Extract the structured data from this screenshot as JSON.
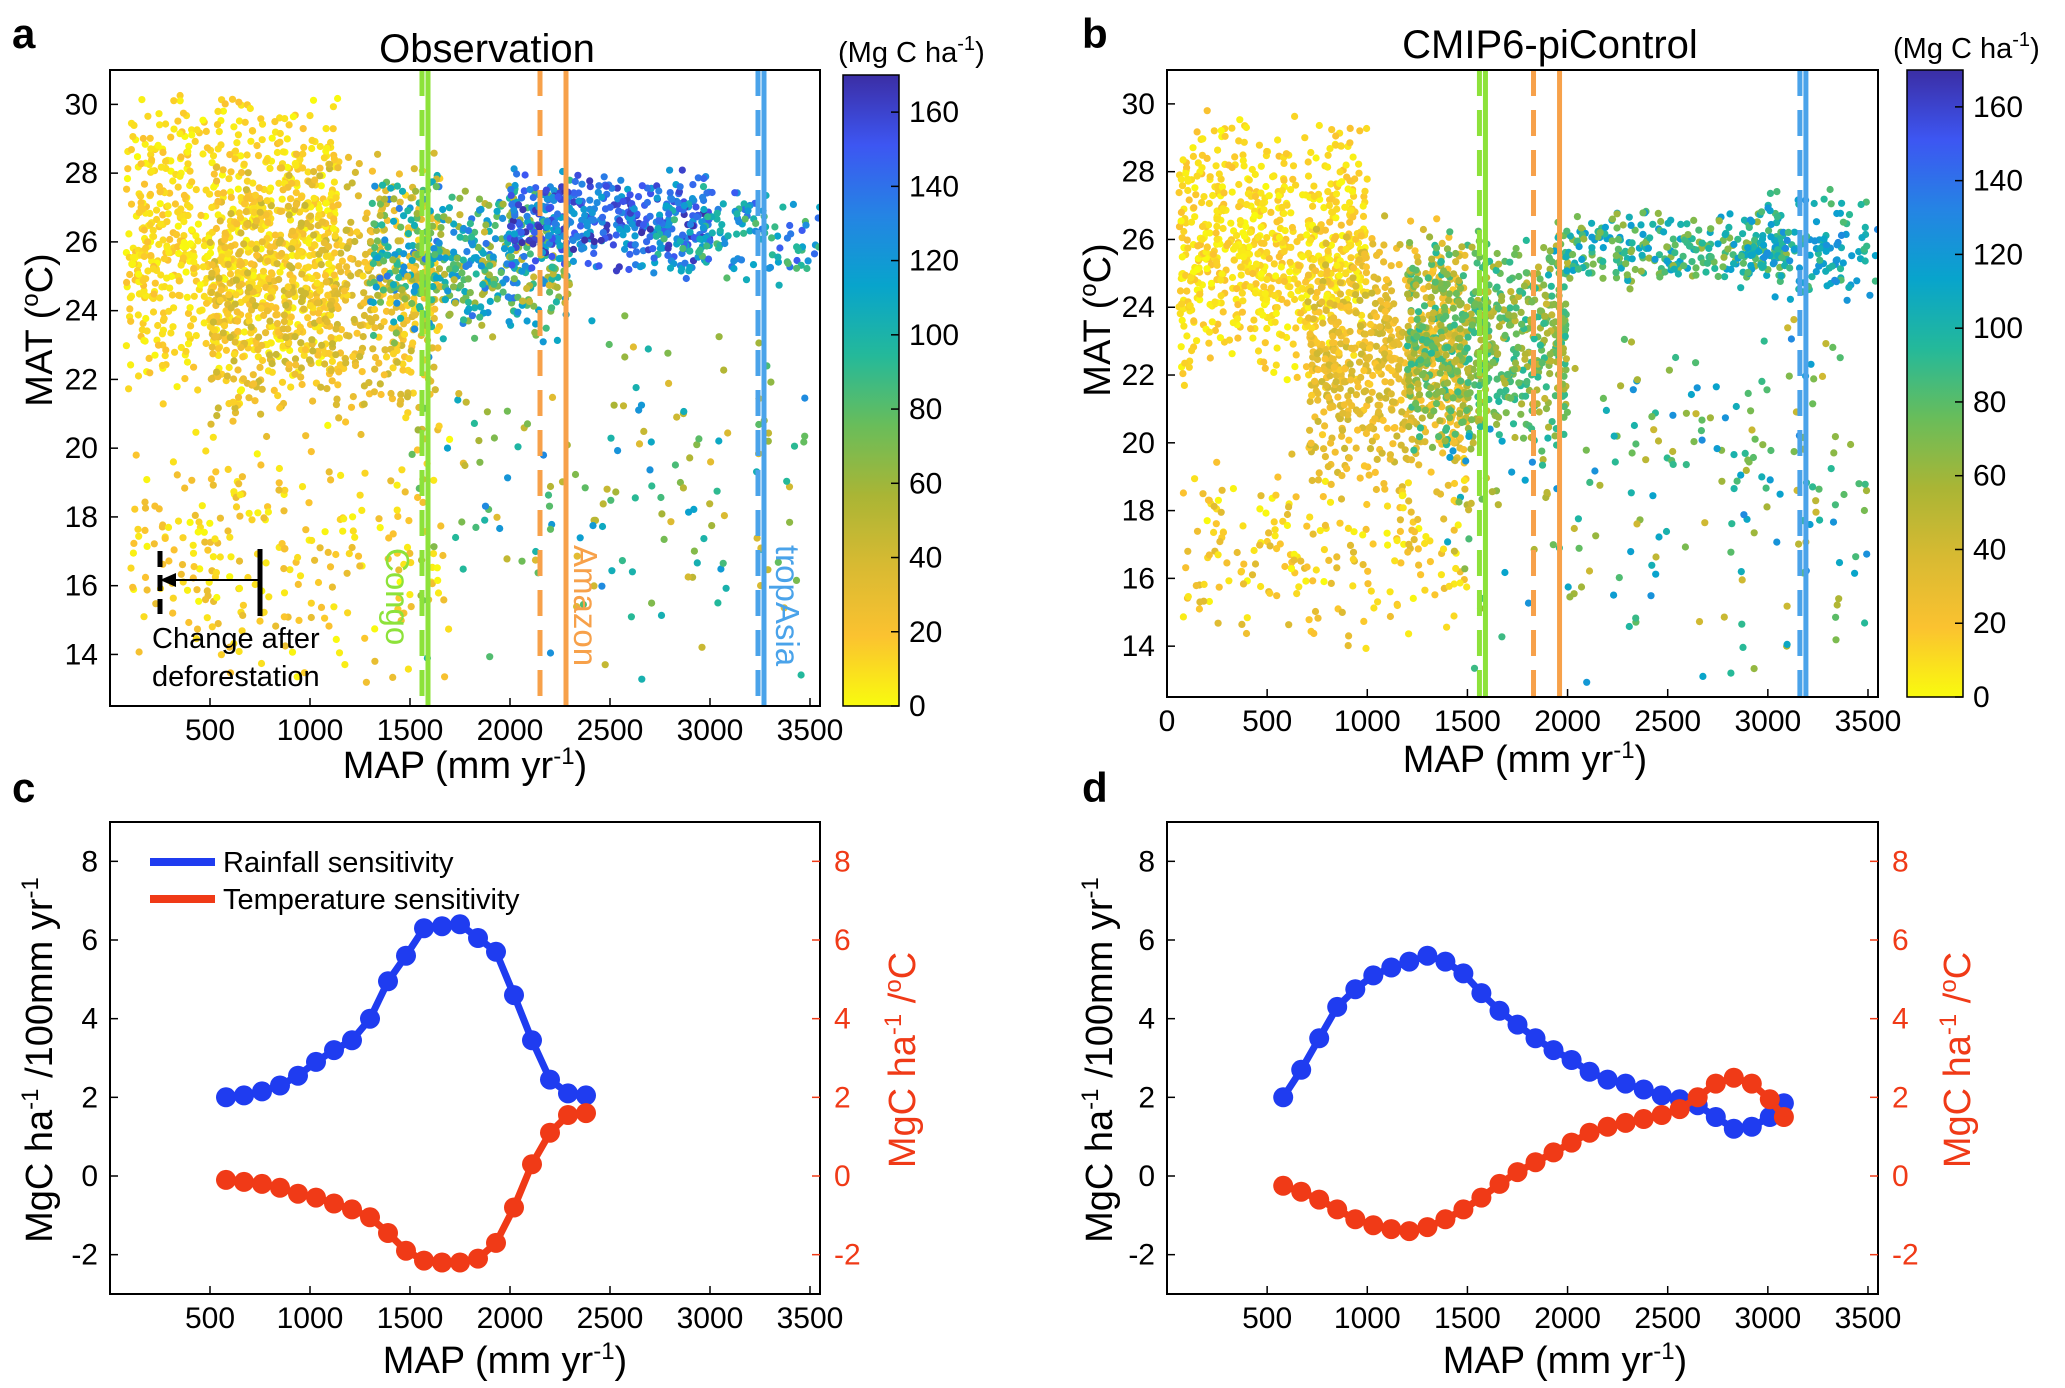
{
  "panels": {
    "a": {
      "letter": "a",
      "title": "Observation",
      "xlabel": "MAP (mm yr",
      "xlabel_sup": "-1",
      "xlabel_end": ")",
      "ylabel": "MAT (",
      "ylabel_sup": "o",
      "ylabel_end": "C)",
      "colorbar_label": "(Mg C ha",
      "colorbar_label_sup": "-1",
      "colorbar_label_end": ")",
      "annotation_line1": "Change after",
      "annotation_line2": "deforestation",
      "vlines": [
        {
          "label": "Congo",
          "color": "#8de23a"
        },
        {
          "label": "Amazon",
          "color": "#f7a14a"
        },
        {
          "label": "tropAsia",
          "color": "#4aa3ea"
        }
      ]
    },
    "b": {
      "letter": "b",
      "title": "CMIP6-piControl",
      "xlabel": "MAP (mm yr",
      "xlabel_sup": "-1",
      "xlabel_end": ")",
      "ylabel": "MAT (",
      "ylabel_sup": "o",
      "ylabel_end": "C)",
      "colorbar_label": "(Mg C ha",
      "colorbar_label_sup": "-1",
      "colorbar_label_end": ")"
    },
    "c": {
      "letter": "c",
      "xlabel": "MAP (mm yr",
      "xlabel_sup": "-1",
      "xlabel_end": ")",
      "ylabel_left": "MgC ha",
      "ylabel_left_sup": "-1",
      "ylabel_left_mid": " /100mm yr",
      "ylabel_left_sup2": "-1",
      "ylabel_right": "MgC ha",
      "ylabel_right_sup": "-1",
      "ylabel_right_mid": " /",
      "ylabel_right_sup2": "o",
      "ylabel_right_end": "C",
      "legend": [
        "Rainfall sensitivity",
        "Temperature sensitivity"
      ]
    },
    "d": {
      "letter": "d",
      "xlabel": "MAP (mm yr",
      "xlabel_sup": "-1",
      "xlabel_end": ")",
      "ylabel_left": "MgC ha",
      "ylabel_left_sup": "-1",
      "ylabel_left_mid": " /100mm yr",
      "ylabel_left_sup2": "-1",
      "ylabel_right": "MgC ha",
      "ylabel_right_sup": "-1",
      "ylabel_right_mid": " /",
      "ylabel_right_sup2": "o",
      "ylabel_right_end": "C"
    }
  },
  "colors": {
    "rainfall": "#1f3cf0",
    "temperature": "#f03a17",
    "axis_right": "#f03a17",
    "congo": "#8de23a",
    "amazon": "#f7a14a",
    "tropasia": "#4aa3ea",
    "colormap": [
      "#f9fb0e",
      "#fbc230",
      "#d8ba32",
      "#aab535",
      "#69bd5a",
      "#24b99a",
      "#08a4cc",
      "#2584e4",
      "#3d56f2",
      "#3b2ea5"
    ]
  },
  "chart_data": [
    {
      "type": "scatter",
      "panel": "a",
      "title": "Observation",
      "xlabel": "MAP (mm yr-1)",
      "ylabel": "MAT (oC)",
      "xlim": [
        0,
        3550
      ],
      "ylim": [
        12.5,
        31
      ],
      "xticks": [
        500,
        1000,
        1500,
        2000,
        2500,
        3000,
        3500
      ],
      "yticks": [
        14,
        16,
        18,
        20,
        22,
        24,
        26,
        28,
        30
      ],
      "color_label": "(Mg C ha-1)",
      "clim": [
        0,
        170
      ],
      "cticks": [
        0,
        20,
        40,
        60,
        80,
        100,
        120,
        140,
        160
      ],
      "vertical_lines": [
        {
          "name": "Congo",
          "dashed_x": 1560,
          "solid_x": 1590
        },
        {
          "name": "Amazon",
          "dashed_x": 2150,
          "solid_x": 2280
        },
        {
          "name": "tropAsia",
          "dashed_x": 3240,
          "solid_x": 3270
        }
      ],
      "annotation": {
        "text": "Change after deforestation",
        "from_x": 740,
        "to_x": 230,
        "y": 16.0
      },
      "clusters": [
        {
          "n": 900,
          "x": [
            80,
            1150
          ],
          "y": [
            21,
            30.7
          ],
          "c": [
            0,
            20
          ]
        },
        {
          "n": 700,
          "x": [
            500,
            1650
          ],
          "y": [
            20,
            29
          ],
          "c": [
            10,
            45
          ]
        },
        {
          "n": 500,
          "x": [
            1300,
            2300
          ],
          "y": [
            23,
            28
          ],
          "c": [
            40,
            140
          ]
        },
        {
          "n": 380,
          "x": [
            2000,
            3000
          ],
          "y": [
            25,
            28.3
          ],
          "c": [
            110,
            170
          ]
        },
        {
          "n": 150,
          "x": [
            2700,
            3550
          ],
          "y": [
            24.5,
            27.8
          ],
          "c": [
            80,
            150
          ]
        },
        {
          "n": 260,
          "x": [
            100,
            1700
          ],
          "y": [
            12.8,
            21
          ],
          "c": [
            0,
            30
          ]
        },
        {
          "n": 160,
          "x": [
            1500,
            3500
          ],
          "y": [
            13,
            24.5
          ],
          "c": [
            30,
            130
          ]
        }
      ]
    },
    {
      "type": "scatter",
      "panel": "b",
      "title": "CMIP6-piControl",
      "xlabel": "MAP (mm yr-1)",
      "ylabel": "MAT (oC)",
      "xlim": [
        0,
        3550
      ],
      "ylim": [
        12.5,
        31
      ],
      "xticks": [
        0,
        500,
        1000,
        1500,
        2000,
        2500,
        3000,
        3500
      ],
      "yticks": [
        14,
        16,
        18,
        20,
        22,
        24,
        26,
        28,
        30
      ],
      "color_label": "(Mg C ha-1)",
      "clim": [
        0,
        170
      ],
      "cticks": [
        0,
        20,
        40,
        60,
        80,
        100,
        120,
        140,
        160
      ],
      "vertical_lines": [
        {
          "name": "Congo",
          "dashed_x": 1560,
          "solid_x": 1590
        },
        {
          "name": "Amazon",
          "dashed_x": 1830,
          "solid_x": 1960
        },
        {
          "name": "tropAsia",
          "dashed_x": 3160,
          "solid_x": 3190
        }
      ],
      "clusters": [
        {
          "n": 750,
          "x": [
            60,
            1000
          ],
          "y": [
            21.5,
            30
          ],
          "c": [
            0,
            20
          ]
        },
        {
          "n": 650,
          "x": [
            700,
            1500
          ],
          "y": [
            18.5,
            26.8
          ],
          "c": [
            15,
            45
          ]
        },
        {
          "n": 650,
          "x": [
            1200,
            2000
          ],
          "y": [
            19.5,
            26.5
          ],
          "c": [
            45,
            95
          ]
        },
        {
          "n": 300,
          "x": [
            1900,
            3100
          ],
          "y": [
            24.5,
            27
          ],
          "c": [
            60,
            120
          ]
        },
        {
          "n": 140,
          "x": [
            2900,
            3550
          ],
          "y": [
            24,
            27.7
          ],
          "c": [
            80,
            130
          ]
        },
        {
          "n": 220,
          "x": [
            80,
            1500
          ],
          "y": [
            13.8,
            20
          ],
          "c": [
            0,
            35
          ]
        },
        {
          "n": 220,
          "x": [
            1400,
            3500
          ],
          "y": [
            12.8,
            24.5
          ],
          "c": [
            40,
            130
          ]
        }
      ]
    },
    {
      "type": "line",
      "panel": "c",
      "xlabel": "MAP (mm yr-1)",
      "xlim": [
        0,
        3550
      ],
      "xticks": [
        500,
        1000,
        1500,
        2000,
        2500,
        3000,
        3500
      ],
      "ylim_left": [
        -3,
        9
      ],
      "ylim_right": [
        -3,
        9
      ],
      "yticks": [
        -2,
        0,
        2,
        4,
        6,
        8
      ],
      "x": [
        580,
        670,
        760,
        850,
        940,
        1030,
        1120,
        1210,
        1300,
        1390,
        1480,
        1570,
        1660,
        1750,
        1840,
        1930,
        2020,
        2110,
        2200,
        2290,
        2380
      ],
      "series": [
        {
          "name": "Rainfall sensitivity",
          "axis": "left",
          "color": "#1f3cf0",
          "values": [
            2.0,
            2.05,
            2.15,
            2.3,
            2.55,
            2.9,
            3.2,
            3.45,
            4.0,
            4.95,
            5.6,
            6.3,
            6.35,
            6.4,
            6.05,
            5.7,
            4.6,
            3.45,
            2.45,
            2.1,
            2.05
          ]
        },
        {
          "name": "Temperature sensitivity",
          "axis": "right",
          "color": "#f03a17",
          "values": [
            -0.1,
            -0.15,
            -0.2,
            -0.3,
            -0.45,
            -0.55,
            -0.7,
            -0.85,
            -1.05,
            -1.45,
            -1.9,
            -2.15,
            -2.2,
            -2.2,
            -2.1,
            -1.7,
            -0.8,
            0.3,
            1.1,
            1.55,
            1.6
          ]
        }
      ]
    },
    {
      "type": "line",
      "panel": "d",
      "xlabel": "MAP (mm yr-1)",
      "xlim": [
        0,
        3550
      ],
      "xticks": [
        500,
        1000,
        1500,
        2000,
        2500,
        3000,
        3500
      ],
      "ylim_left": [
        -3,
        9
      ],
      "ylim_right": [
        -3,
        9
      ],
      "yticks": [
        -2,
        0,
        2,
        4,
        6,
        8
      ],
      "x": [
        580,
        670,
        760,
        850,
        940,
        1030,
        1120,
        1210,
        1300,
        1390,
        1480,
        1570,
        1660,
        1750,
        1840,
        1930,
        2020,
        2110,
        2200,
        2290,
        2380,
        2470,
        2560,
        2650,
        2740,
        2830,
        2920,
        3010,
        3080
      ],
      "series": [
        {
          "name": "Rainfall sensitivity",
          "axis": "left",
          "color": "#1f3cf0",
          "values": [
            2.0,
            2.7,
            3.5,
            4.3,
            4.75,
            5.1,
            5.3,
            5.45,
            5.6,
            5.45,
            5.15,
            4.65,
            4.2,
            3.85,
            3.5,
            3.2,
            2.95,
            2.65,
            2.45,
            2.35,
            2.2,
            2.05,
            1.95,
            1.8,
            1.5,
            1.2,
            1.25,
            1.5,
            1.85
          ]
        },
        {
          "name": "Temperature sensitivity",
          "axis": "right",
          "color": "#f03a17",
          "values": [
            -0.25,
            -0.4,
            -0.6,
            -0.85,
            -1.1,
            -1.25,
            -1.35,
            -1.4,
            -1.3,
            -1.1,
            -0.85,
            -0.55,
            -0.2,
            0.1,
            0.35,
            0.6,
            0.85,
            1.1,
            1.25,
            1.35,
            1.45,
            1.55,
            1.7,
            2.0,
            2.35,
            2.5,
            2.35,
            1.95,
            1.5
          ]
        }
      ]
    }
  ]
}
